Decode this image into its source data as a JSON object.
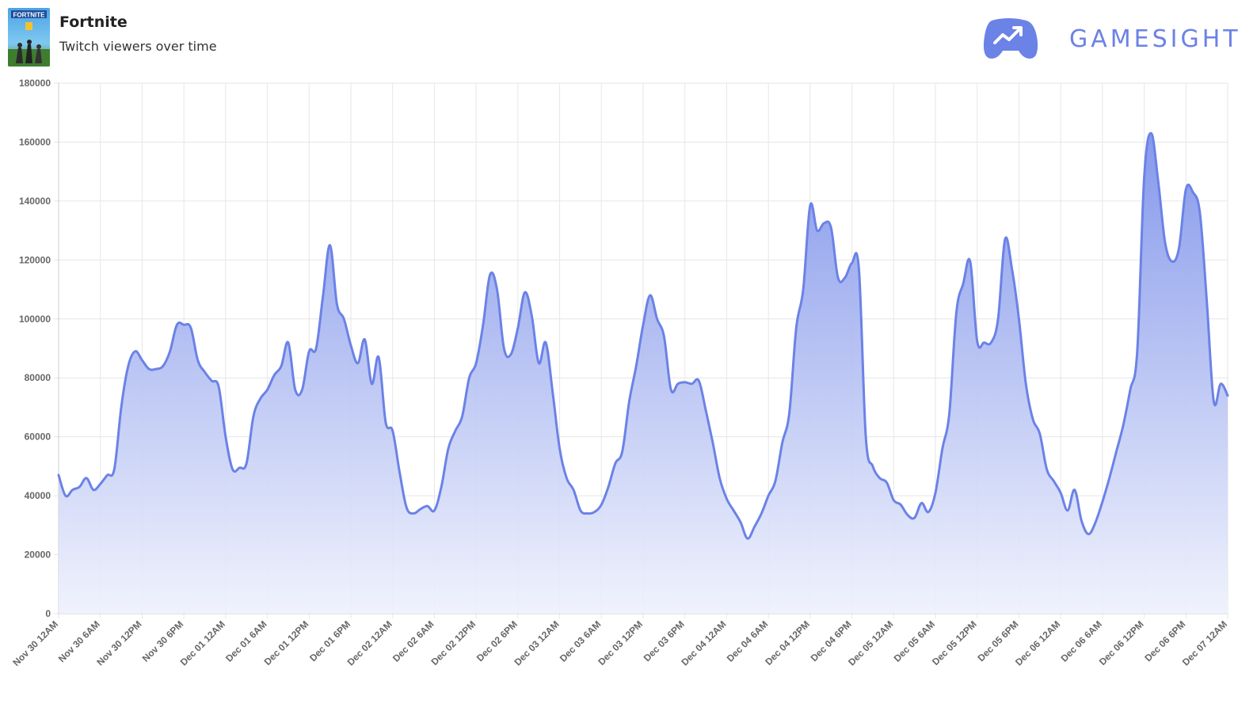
{
  "header": {
    "title": "Fortnite",
    "subtitle": "Twitch viewers over time",
    "cover_icon": "fortnite-cover-art",
    "brand_icon": "gamepad-trend-icon",
    "brand_name": "GAMESIGHT"
  },
  "colors": {
    "line": "#6b82e6",
    "fill_top": "#7f93ea",
    "fill_bottom": "#eef1fc",
    "brand": "#6b82e6",
    "grid": "#e6e6e6"
  },
  "chart_data": {
    "type": "area",
    "title": "",
    "xlabel": "",
    "ylabel": "",
    "ylim": [
      0,
      180000
    ],
    "yticks": [
      0,
      20000,
      40000,
      60000,
      80000,
      100000,
      120000,
      140000,
      160000,
      180000
    ],
    "xtick_labels": [
      "Nov 30 12AM",
      "Nov 30 6AM",
      "Nov 30 12PM",
      "Nov 30 6PM",
      "Dec 01 12AM",
      "Dec 01 6AM",
      "Dec 01 12PM",
      "Dec 01 6PM",
      "Dec 02 12AM",
      "Dec 02 6AM",
      "Dec 02 12PM",
      "Dec 02 6PM",
      "Dec 03 12AM",
      "Dec 03 6AM",
      "Dec 03 12PM",
      "Dec 03 6PM",
      "Dec 04 12AM",
      "Dec 04 6AM",
      "Dec 04 12PM",
      "Dec 04 6PM",
      "Dec 05 12AM",
      "Dec 05 6AM",
      "Dec 05 12PM",
      "Dec 05 6PM",
      "Dec 06 12AM",
      "Dec 06 6AM",
      "Dec 06 12PM",
      "Dec 06 6PM",
      "Dec 07 12AM"
    ],
    "x_unit": "hours since Nov 30 12AM",
    "grid": true,
    "legend": "none",
    "series": [
      {
        "x": [
          0,
          1,
          2,
          3,
          4,
          5,
          6,
          7,
          8,
          9,
          10,
          11,
          12,
          13,
          14,
          15,
          16,
          17,
          18,
          19,
          20,
          21,
          22,
          23,
          24,
          25,
          26,
          27,
          28,
          29,
          30,
          31,
          32,
          33,
          34,
          35,
          36,
          37,
          38,
          39,
          40,
          41,
          42,
          43,
          44,
          45,
          46,
          47,
          48,
          49,
          50,
          51,
          52,
          53,
          54,
          55,
          56,
          57,
          58,
          59,
          60,
          61,
          62,
          63,
          64,
          65,
          66,
          67,
          68,
          69,
          70,
          71,
          72,
          73,
          74,
          75,
          76,
          77,
          78,
          79,
          80,
          81,
          82,
          83,
          84,
          85,
          86,
          87,
          88,
          89,
          90,
          91,
          92,
          93,
          94,
          95,
          96,
          97,
          98,
          99,
          100,
          101,
          102,
          103,
          104,
          105,
          106,
          107,
          108,
          109,
          110,
          111,
          112,
          113,
          114,
          115,
          116,
          117,
          118,
          119,
          120,
          121,
          122,
          123,
          124,
          125,
          126,
          127,
          128,
          129,
          130,
          131,
          132,
          133,
          134,
          135,
          136,
          137,
          138,
          139,
          140,
          141,
          142,
          143,
          144,
          145,
          146,
          147,
          148,
          149,
          150,
          151,
          152,
          153,
          154,
          155,
          156,
          157,
          158,
          159,
          160,
          161,
          162,
          163,
          164,
          165,
          166,
          167,
          168
        ],
        "values": [
          47000,
          40000,
          42000,
          43000,
          46000,
          42000,
          44000,
          47000,
          49000,
          70000,
          84000,
          89000,
          86000,
          83000,
          83000,
          84000,
          89000,
          98000,
          98000,
          97000,
          86000,
          82000,
          79000,
          77000,
          60000,
          49000,
          49500,
          51000,
          67000,
          73000,
          76000,
          81000,
          84000,
          92000,
          76000,
          76000,
          89000,
          90000,
          108000,
          125000,
          105000,
          100000,
          91000,
          85000,
          93000,
          78000,
          87000,
          65000,
          62000,
          48000,
          36000,
          34000,
          35500,
          36500,
          35000,
          43000,
          56000,
          62000,
          67000,
          80000,
          85000,
          98000,
          115000,
          110000,
          90000,
          88000,
          97000,
          109000,
          101000,
          85000,
          92000,
          75000,
          56000,
          46000,
          42000,
          35000,
          34000,
          34500,
          37000,
          43000,
          51000,
          55000,
          72000,
          84000,
          98000,
          108000,
          100000,
          94000,
          76000,
          78000,
          78500,
          78000,
          79000,
          69000,
          58000,
          46000,
          39000,
          35000,
          31000,
          25500,
          29500,
          34000,
          40000,
          45000,
          58000,
          68000,
          97000,
          110000,
          138500,
          130000,
          132500,
          131000,
          114000,
          114000,
          119000,
          117000,
          60000,
          50000,
          46000,
          44500,
          38500,
          37000,
          33500,
          32500,
          37500,
          34500,
          41000,
          56000,
          68000,
          102000,
          112000,
          119500,
          92500,
          92000,
          92000,
          100000,
          127000,
          117000,
          100000,
          78000,
          66000,
          61000,
          49000,
          45000,
          41000,
          35000,
          42000,
          31500,
          27000,
          31000,
          38000,
          46000,
          55000,
          64000,
          76000,
          89000,
          148000,
          163000,
          147000,
          126000,
          119500,
          124000,
          144000,
          143000,
          136000,
          106000,
          72000,
          78000,
          74000
        ]
      }
    ]
  }
}
